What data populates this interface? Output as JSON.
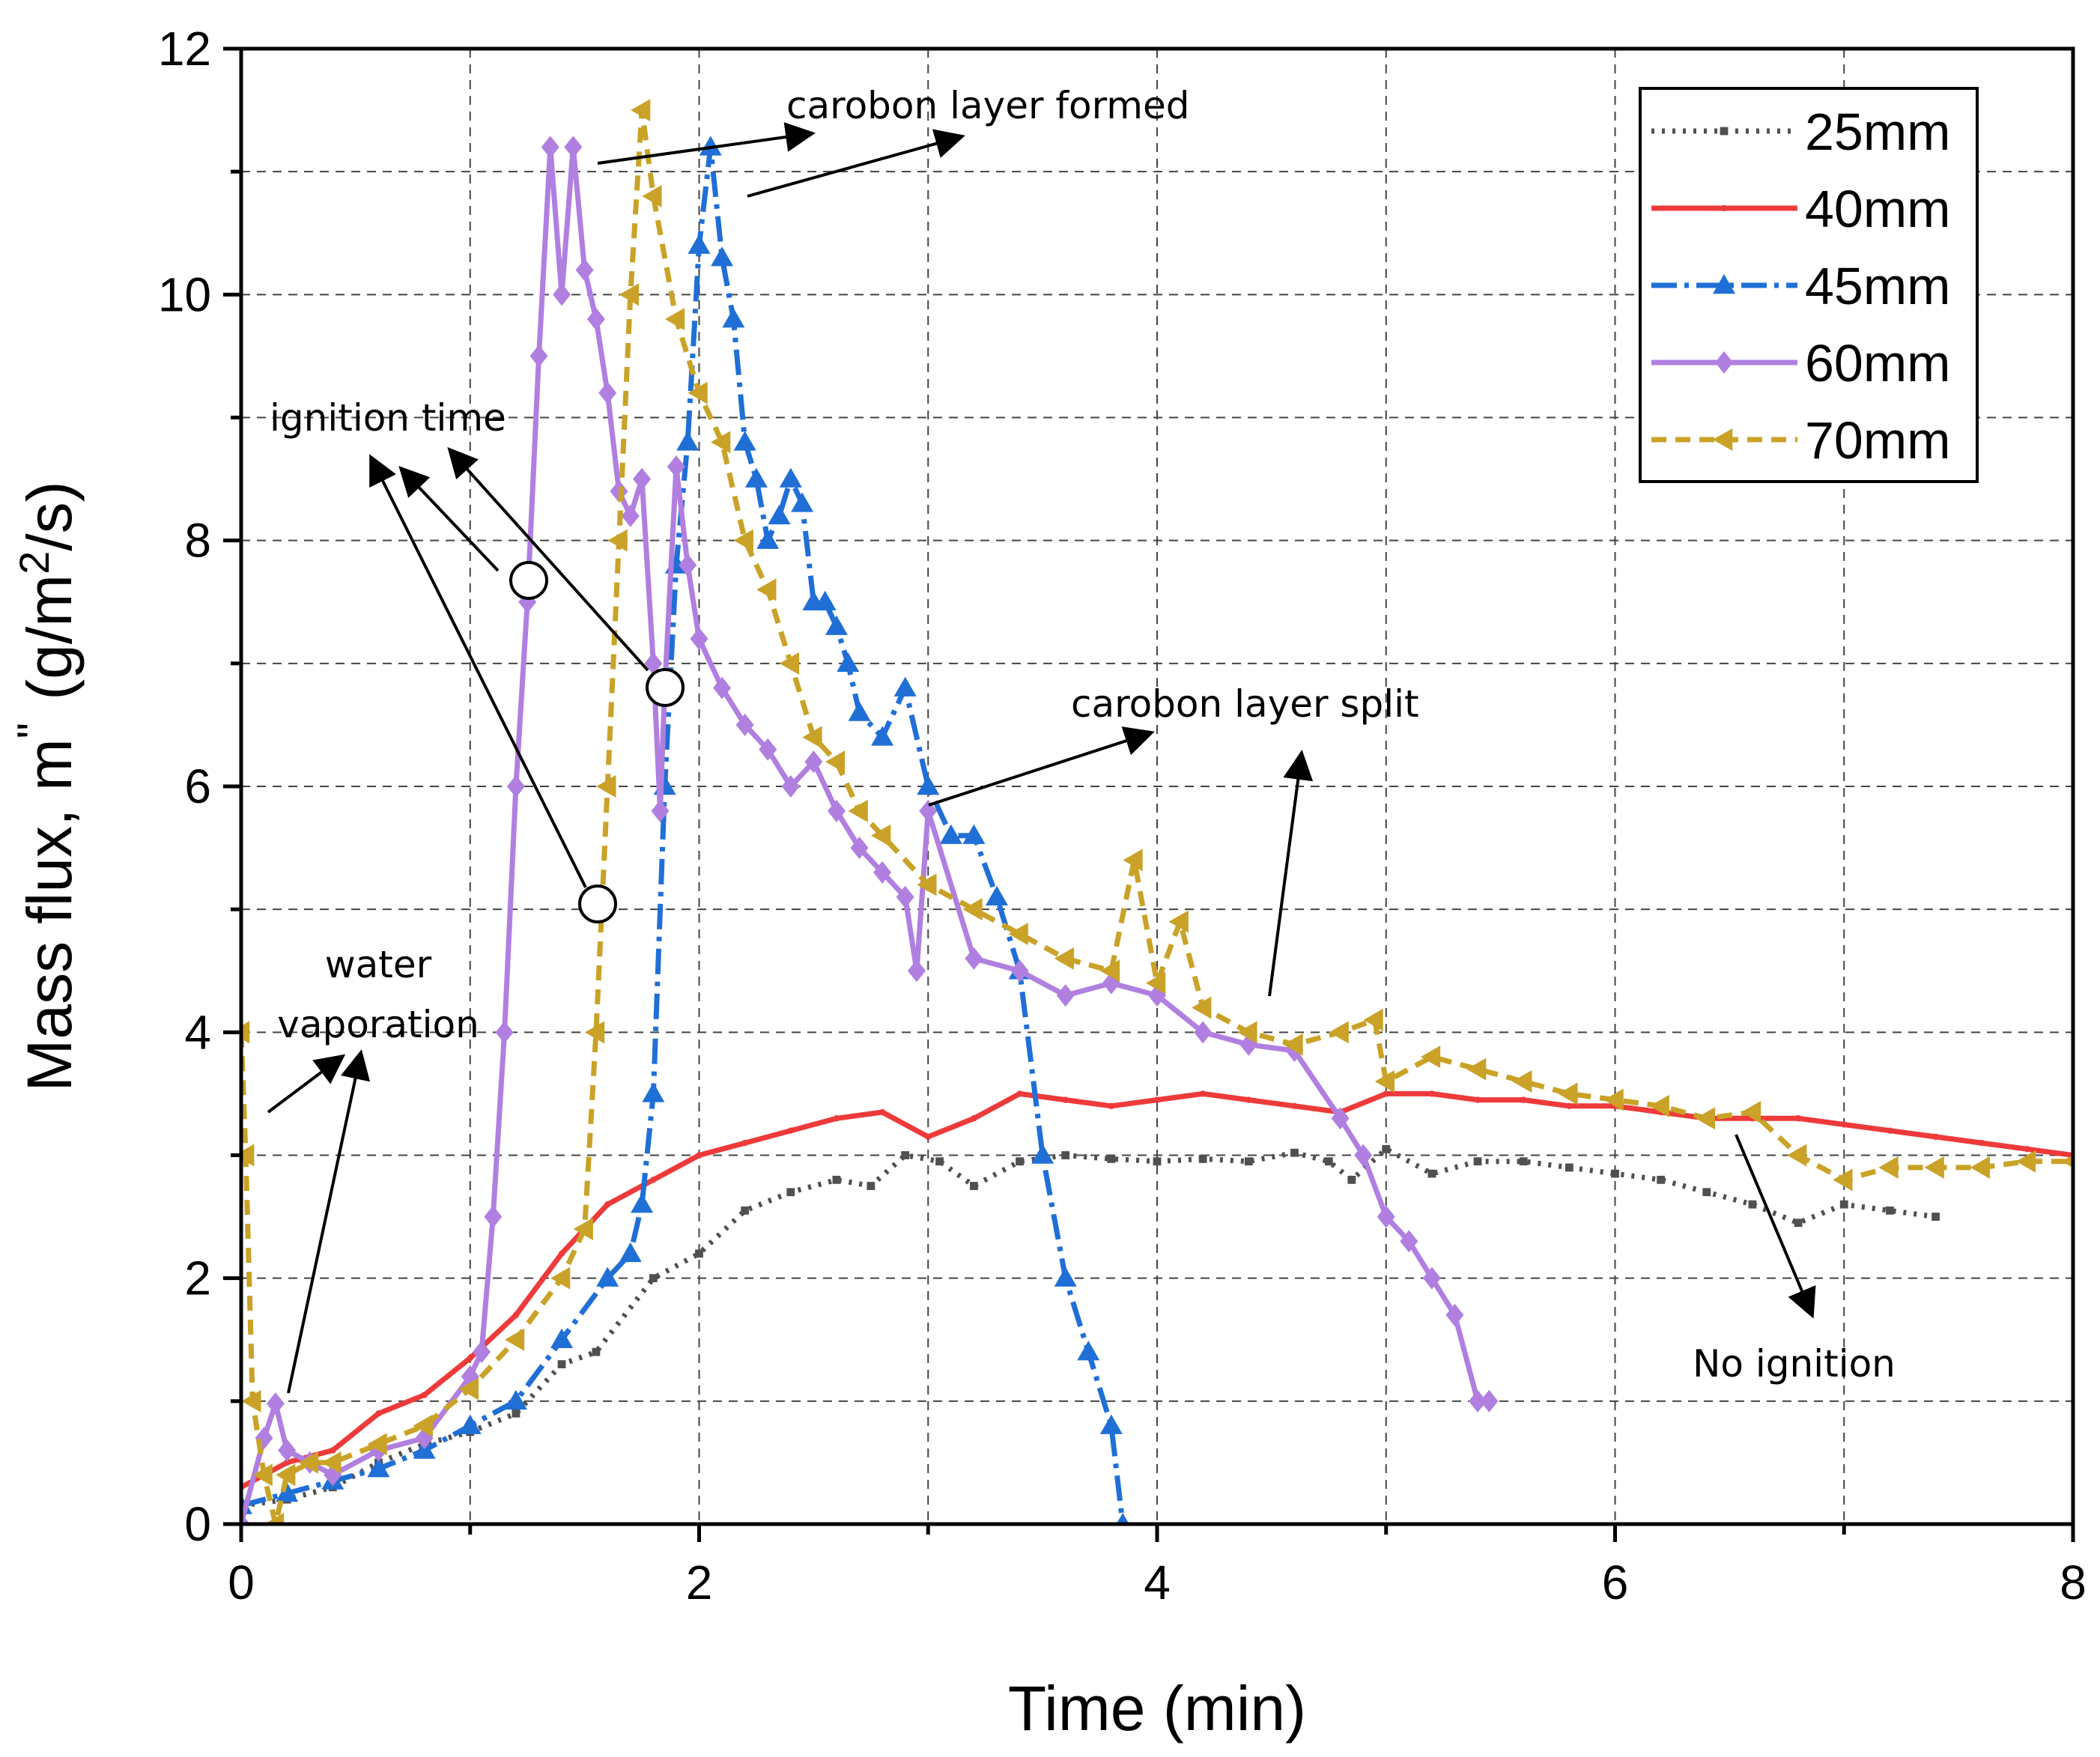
{
  "chart_data": {
    "type": "line",
    "title": "",
    "xlabel": "Time (min)",
    "ylabel_main": "Mass flux, m",
    "ylabel_prime": "\"",
    "ylabel_units_pre": "(g/m",
    "ylabel_units_sup": "2",
    "ylabel_units_post": "/s)",
    "xlim": [
      0,
      8
    ],
    "ylim": [
      0,
      12
    ],
    "xticks": [
      0,
      2,
      4,
      6,
      8
    ],
    "yticks": [
      0,
      2,
      4,
      6,
      8,
      10,
      12
    ],
    "grid": true,
    "legend_position": "top-right",
    "series": [
      {
        "name": "25mm",
        "color": "#505050",
        "marker": "square",
        "points": [
          [
            0.0,
            0.15
          ],
          [
            0.2,
            0.2
          ],
          [
            0.4,
            0.3
          ],
          [
            0.6,
            0.5
          ],
          [
            0.8,
            0.65
          ],
          [
            1.0,
            0.75
          ],
          [
            1.2,
            0.9
          ],
          [
            1.4,
            1.3
          ],
          [
            1.55,
            1.4
          ],
          [
            1.8,
            2.0
          ],
          [
            2.0,
            2.2
          ],
          [
            2.2,
            2.55
          ],
          [
            2.4,
            2.7
          ],
          [
            2.6,
            2.8
          ],
          [
            2.75,
            2.75
          ],
          [
            2.9,
            3.0
          ],
          [
            3.05,
            2.95
          ],
          [
            3.2,
            2.75
          ],
          [
            3.4,
            2.95
          ],
          [
            3.6,
            3.0
          ],
          [
            3.8,
            2.97
          ],
          [
            4.0,
            2.95
          ],
          [
            4.2,
            2.97
          ],
          [
            4.4,
            2.95
          ],
          [
            4.6,
            3.02
          ],
          [
            4.75,
            2.95
          ],
          [
            4.85,
            2.8
          ],
          [
            5.0,
            3.05
          ],
          [
            5.2,
            2.85
          ],
          [
            5.4,
            2.95
          ],
          [
            5.6,
            2.95
          ],
          [
            5.8,
            2.9
          ],
          [
            6.0,
            2.85
          ],
          [
            6.2,
            2.8
          ],
          [
            6.4,
            2.7
          ],
          [
            6.6,
            2.6
          ],
          [
            6.8,
            2.45
          ],
          [
            7.0,
            2.6
          ],
          [
            7.2,
            2.55
          ],
          [
            7.4,
            2.5
          ]
        ]
      },
      {
        "name": "40mm",
        "color": "#ee3a3a",
        "marker": "circle",
        "points": [
          [
            0.0,
            0.3
          ],
          [
            0.2,
            0.5
          ],
          [
            0.4,
            0.6
          ],
          [
            0.6,
            0.9
          ],
          [
            0.8,
            1.05
          ],
          [
            1.0,
            1.35
          ],
          [
            1.2,
            1.7
          ],
          [
            1.4,
            2.2
          ],
          [
            1.6,
            2.6
          ],
          [
            1.8,
            2.8
          ],
          [
            2.0,
            3.0
          ],
          [
            2.2,
            3.1
          ],
          [
            2.4,
            3.2
          ],
          [
            2.6,
            3.3
          ],
          [
            2.8,
            3.35
          ],
          [
            3.0,
            3.15
          ],
          [
            3.2,
            3.3
          ],
          [
            3.4,
            3.5
          ],
          [
            3.6,
            3.45
          ],
          [
            3.8,
            3.4
          ],
          [
            4.0,
            3.45
          ],
          [
            4.2,
            3.5
          ],
          [
            4.4,
            3.45
          ],
          [
            4.6,
            3.4
          ],
          [
            4.8,
            3.35
          ],
          [
            5.0,
            3.5
          ],
          [
            5.2,
            3.5
          ],
          [
            5.4,
            3.45
          ],
          [
            5.6,
            3.45
          ],
          [
            5.8,
            3.4
          ],
          [
            6.0,
            3.4
          ],
          [
            6.2,
            3.35
          ],
          [
            6.4,
            3.3
          ],
          [
            6.6,
            3.3
          ],
          [
            6.8,
            3.3
          ],
          [
            7.0,
            3.25
          ],
          [
            7.2,
            3.2
          ],
          [
            7.4,
            3.15
          ],
          [
            7.6,
            3.1
          ],
          [
            7.8,
            3.05
          ],
          [
            8.0,
            3.0
          ]
        ]
      },
      {
        "name": "45mm",
        "color": "#1f6fd6",
        "marker": "triangle-up",
        "points": [
          [
            0.0,
            0.15
          ],
          [
            0.2,
            0.25
          ],
          [
            0.4,
            0.35
          ],
          [
            0.6,
            0.45
          ],
          [
            0.8,
            0.6
          ],
          [
            1.0,
            0.8
          ],
          [
            1.2,
            1.0
          ],
          [
            1.4,
            1.5
          ],
          [
            1.6,
            2.0
          ],
          [
            1.7,
            2.2
          ],
          [
            1.75,
            2.6
          ],
          [
            1.8,
            3.5
          ],
          [
            1.85,
            6.0
          ],
          [
            1.9,
            7.8
          ],
          [
            1.95,
            8.8
          ],
          [
            2.0,
            10.4
          ],
          [
            2.05,
            11.2
          ],
          [
            2.1,
            10.3
          ],
          [
            2.15,
            9.8
          ],
          [
            2.2,
            8.8
          ],
          [
            2.25,
            8.5
          ],
          [
            2.3,
            8.0
          ],
          [
            2.35,
            8.2
          ],
          [
            2.4,
            8.5
          ],
          [
            2.45,
            8.3
          ],
          [
            2.5,
            7.5
          ],
          [
            2.55,
            7.5
          ],
          [
            2.6,
            7.3
          ],
          [
            2.65,
            7.0
          ],
          [
            2.7,
            6.6
          ],
          [
            2.8,
            6.4
          ],
          [
            2.9,
            6.8
          ],
          [
            3.0,
            6.0
          ],
          [
            3.1,
            5.6
          ],
          [
            3.2,
            5.6
          ],
          [
            3.3,
            5.1
          ],
          [
            3.4,
            4.5
          ],
          [
            3.5,
            3.0
          ],
          [
            3.6,
            2.0
          ],
          [
            3.7,
            1.4
          ],
          [
            3.8,
            0.8
          ],
          [
            3.85,
            0.0
          ]
        ]
      },
      {
        "name": "60mm",
        "color": "#b07fe0",
        "marker": "diamond",
        "points": [
          [
            0.0,
            0.0
          ],
          [
            0.1,
            0.7
          ],
          [
            0.15,
            0.98
          ],
          [
            0.2,
            0.6
          ],
          [
            0.3,
            0.5
          ],
          [
            0.4,
            0.4
          ],
          [
            0.6,
            0.6
          ],
          [
            0.8,
            0.7
          ],
          [
            1.0,
            1.2
          ],
          [
            1.05,
            1.4
          ],
          [
            1.1,
            2.5
          ],
          [
            1.15,
            4.0
          ],
          [
            1.2,
            6.0
          ],
          [
            1.25,
            7.5
          ],
          [
            1.3,
            9.5
          ],
          [
            1.35,
            11.2
          ],
          [
            1.4,
            10.0
          ],
          [
            1.45,
            11.2
          ],
          [
            1.5,
            10.2
          ],
          [
            1.55,
            9.8
          ],
          [
            1.6,
            9.2
          ],
          [
            1.65,
            8.4
          ],
          [
            1.7,
            8.2
          ],
          [
            1.75,
            8.5
          ],
          [
            1.8,
            7.0
          ],
          [
            1.83,
            5.8
          ],
          [
            1.85,
            6.8
          ],
          [
            1.9,
            8.6
          ],
          [
            1.95,
            7.8
          ],
          [
            2.0,
            7.2
          ],
          [
            2.1,
            6.8
          ],
          [
            2.2,
            6.5
          ],
          [
            2.3,
            6.3
          ],
          [
            2.4,
            6.0
          ],
          [
            2.5,
            6.2
          ],
          [
            2.6,
            5.8
          ],
          [
            2.7,
            5.5
          ],
          [
            2.8,
            5.3
          ],
          [
            2.9,
            5.1
          ],
          [
            2.95,
            4.5
          ],
          [
            3.0,
            5.8
          ],
          [
            3.2,
            4.6
          ],
          [
            3.4,
            4.5
          ],
          [
            3.6,
            4.3
          ],
          [
            3.8,
            4.4
          ],
          [
            4.0,
            4.3
          ],
          [
            4.2,
            4.0
          ],
          [
            4.4,
            3.9
          ],
          [
            4.6,
            3.85
          ],
          [
            4.8,
            3.3
          ],
          [
            4.9,
            3.0
          ],
          [
            5.0,
            2.5
          ],
          [
            5.1,
            2.3
          ],
          [
            5.2,
            2.0
          ],
          [
            5.3,
            1.7
          ],
          [
            5.4,
            1.0
          ],
          [
            5.45,
            1.0
          ]
        ]
      },
      {
        "name": "70mm",
        "color": "#c9a227",
        "marker": "triangle-left",
        "points": [
          [
            0.0,
            4.0
          ],
          [
            0.02,
            3.0
          ],
          [
            0.05,
            1.0
          ],
          [
            0.1,
            0.4
          ],
          [
            0.15,
            0.0
          ],
          [
            0.2,
            0.4
          ],
          [
            0.3,
            0.5
          ],
          [
            0.4,
            0.5
          ],
          [
            0.6,
            0.65
          ],
          [
            0.8,
            0.8
          ],
          [
            1.0,
            1.1
          ],
          [
            1.2,
            1.5
          ],
          [
            1.4,
            2.0
          ],
          [
            1.5,
            2.4
          ],
          [
            1.55,
            4.0
          ],
          [
            1.6,
            6.0
          ],
          [
            1.65,
            8.0
          ],
          [
            1.7,
            10.0
          ],
          [
            1.75,
            11.5
          ],
          [
            1.8,
            10.8
          ],
          [
            1.9,
            9.8
          ],
          [
            2.0,
            9.2
          ],
          [
            2.1,
            8.8
          ],
          [
            2.2,
            8.0
          ],
          [
            2.3,
            7.6
          ],
          [
            2.4,
            7.0
          ],
          [
            2.5,
            6.4
          ],
          [
            2.6,
            6.2
          ],
          [
            2.7,
            5.8
          ],
          [
            2.8,
            5.6
          ],
          [
            3.0,
            5.2
          ],
          [
            3.2,
            5.0
          ],
          [
            3.4,
            4.8
          ],
          [
            3.6,
            4.6
          ],
          [
            3.8,
            4.5
          ],
          [
            3.9,
            5.4
          ],
          [
            4.0,
            4.4
          ],
          [
            4.1,
            4.9
          ],
          [
            4.2,
            4.2
          ],
          [
            4.4,
            4.0
          ],
          [
            4.6,
            3.9
          ],
          [
            4.8,
            4.0
          ],
          [
            4.95,
            4.1
          ],
          [
            5.0,
            3.6
          ],
          [
            5.2,
            3.8
          ],
          [
            5.4,
            3.7
          ],
          [
            5.6,
            3.6
          ],
          [
            5.8,
            3.5
          ],
          [
            6.0,
            3.45
          ],
          [
            6.2,
            3.4
          ],
          [
            6.4,
            3.3
          ],
          [
            6.6,
            3.35
          ],
          [
            6.8,
            3.0
          ],
          [
            7.0,
            2.8
          ],
          [
            7.2,
            2.9
          ],
          [
            7.4,
            2.9
          ],
          [
            7.6,
            2.9
          ],
          [
            7.8,
            2.95
          ],
          [
            8.0,
            2.95
          ]
        ]
      }
    ],
    "annotations": [
      {
        "text": "carobon layer formed"
      },
      {
        "text": "ignition time"
      },
      {
        "text": "carobon layer split"
      },
      {
        "text": "water"
      },
      {
        "text": "vaporation"
      },
      {
        "text": "No ignition"
      }
    ]
  }
}
